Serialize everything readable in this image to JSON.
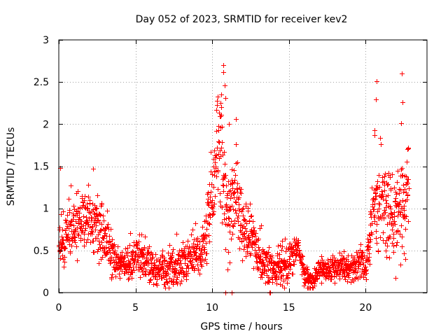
{
  "chart_data": {
    "type": "scatter",
    "title": "Day 052 of 2023, SRMTID for receiver kev2",
    "xlabel": "GPS time / hours",
    "ylabel": "SRMTID / TECUs",
    "xlim": [
      0,
      24
    ],
    "ylim": [
      0,
      3
    ],
    "xticks": [
      0,
      5,
      10,
      15,
      20
    ],
    "xtick_labels": [
      "0",
      "5",
      "10",
      "15",
      "20"
    ],
    "yticks": [
      0,
      0.5,
      1,
      1.5,
      2,
      2.5,
      3
    ],
    "ytick_labels": [
      "0",
      "0.5",
      "1",
      "1.5",
      "2",
      "2.5",
      "3"
    ],
    "grid": true,
    "marker": "+",
    "series": [
      {
        "name": "SRMTID",
        "color": "#ff0000",
        "trend": [
          [
            0.0,
            0.55
          ],
          [
            0.5,
            0.65
          ],
          [
            1.0,
            0.75
          ],
          [
            1.5,
            0.85
          ],
          [
            2.0,
            0.9
          ],
          [
            2.5,
            0.75
          ],
          [
            3.0,
            0.6
          ],
          [
            3.5,
            0.45
          ],
          [
            4.0,
            0.32
          ],
          [
            4.5,
            0.3
          ],
          [
            5.0,
            0.45
          ],
          [
            5.5,
            0.4
          ],
          [
            6.0,
            0.3
          ],
          [
            6.5,
            0.28
          ],
          [
            7.0,
            0.3
          ],
          [
            7.5,
            0.25
          ],
          [
            8.0,
            0.35
          ],
          [
            8.5,
            0.45
          ],
          [
            9.0,
            0.45
          ],
          [
            9.5,
            0.6
          ],
          [
            10.0,
            1.2
          ],
          [
            10.5,
            1.8
          ],
          [
            11.0,
            0.9
          ],
          [
            11.5,
            1.2
          ],
          [
            12.0,
            0.75
          ],
          [
            12.5,
            0.7
          ],
          [
            13.0,
            0.45
          ],
          [
            13.5,
            0.3
          ],
          [
            14.0,
            0.28
          ],
          [
            14.5,
            0.3
          ],
          [
            15.0,
            0.35
          ],
          [
            15.5,
            0.6
          ],
          [
            16.0,
            0.2
          ],
          [
            16.5,
            0.15
          ],
          [
            17.0,
            0.25
          ],
          [
            17.5,
            0.28
          ],
          [
            18.0,
            0.28
          ],
          [
            18.5,
            0.3
          ],
          [
            19.0,
            0.3
          ],
          [
            19.5,
            0.35
          ],
          [
            20.0,
            0.3
          ],
          [
            20.5,
            1.1
          ],
          [
            21.0,
            1.05
          ],
          [
            21.5,
            0.9
          ],
          [
            22.0,
            0.85
          ],
          [
            22.5,
            1.0
          ],
          [
            22.8,
            1.2
          ]
        ],
        "spread": [
          [
            0.0,
            0.25
          ],
          [
            2.5,
            0.3
          ],
          [
            4.0,
            0.15
          ],
          [
            9.5,
            0.25
          ],
          [
            10.5,
            0.6
          ],
          [
            11.5,
            0.4
          ],
          [
            13.0,
            0.2
          ],
          [
            15.0,
            0.2
          ],
          [
            16.0,
            0.1
          ],
          [
            20.0,
            0.15
          ],
          [
            21.0,
            0.45
          ],
          [
            22.8,
            0.45
          ]
        ],
        "peaks": [
          [
            10.72,
            2.7
          ],
          [
            10.74,
            2.62
          ],
          [
            10.82,
            2.46
          ],
          [
            10.88,
            2.31
          ],
          [
            10.55,
            2.25
          ],
          [
            10.6,
            2.2
          ],
          [
            11.1,
            2.0
          ],
          [
            11.55,
            2.06
          ],
          [
            20.72,
            2.51
          ],
          [
            20.68,
            2.29
          ],
          [
            22.35,
            2.6
          ],
          [
            22.4,
            2.26
          ],
          [
            22.3,
            2.01
          ],
          [
            20.6,
            1.87
          ],
          [
            22.7,
            1.7
          ],
          [
            2.25,
            1.47
          ],
          [
            0.1,
            1.48
          ]
        ],
        "zeros": [
          10.85,
          11.25,
          13.75,
          13.8
        ]
      }
    ]
  }
}
